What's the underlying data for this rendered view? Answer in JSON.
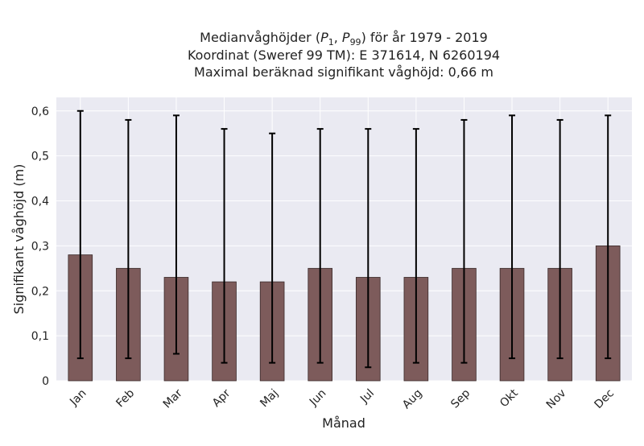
{
  "chart_data": {
    "type": "bar",
    "title_lines": [
      "Medianvåghöjder (P1, P99) för år 1979 - 2019",
      "Koordinat (Sweref 99 TM): E 371614, N 6260194",
      "Maximal beräknad signifikant våghöjd: 0,66 m"
    ],
    "xlabel": "Månad",
    "ylabel": "Signifikant våghöjd (m)",
    "ylim": [
      0,
      0.63
    ],
    "yticks": [
      0,
      0.1,
      0.2,
      0.3,
      0.4,
      0.5,
      0.6
    ],
    "ytick_labels": [
      "0",
      "0,1",
      "0,2",
      "0,3",
      "0,4",
      "0,5",
      "0,6"
    ],
    "categories": [
      "Jan",
      "Feb",
      "Mar",
      "Apr",
      "Maj",
      "Jun",
      "Jul",
      "Aug",
      "Sep",
      "Okt",
      "Nov",
      "Dec"
    ],
    "values": [
      0.28,
      0.25,
      0.23,
      0.22,
      0.22,
      0.25,
      0.23,
      0.23,
      0.25,
      0.25,
      0.25,
      0.3
    ],
    "error_low": [
      0.05,
      0.05,
      0.06,
      0.04,
      0.04,
      0.04,
      0.03,
      0.04,
      0.04,
      0.05,
      0.05,
      0.05
    ],
    "error_high": [
      0.6,
      0.58,
      0.59,
      0.56,
      0.55,
      0.56,
      0.56,
      0.56,
      0.58,
      0.59,
      0.58,
      0.59
    ],
    "grid": true,
    "colors": {
      "bar": "#7d5b5b",
      "bar_edge": "#3a2a2a",
      "errorbar": "#000000",
      "plot_background": "#eaeaf2",
      "grid": "#ffffff"
    }
  }
}
